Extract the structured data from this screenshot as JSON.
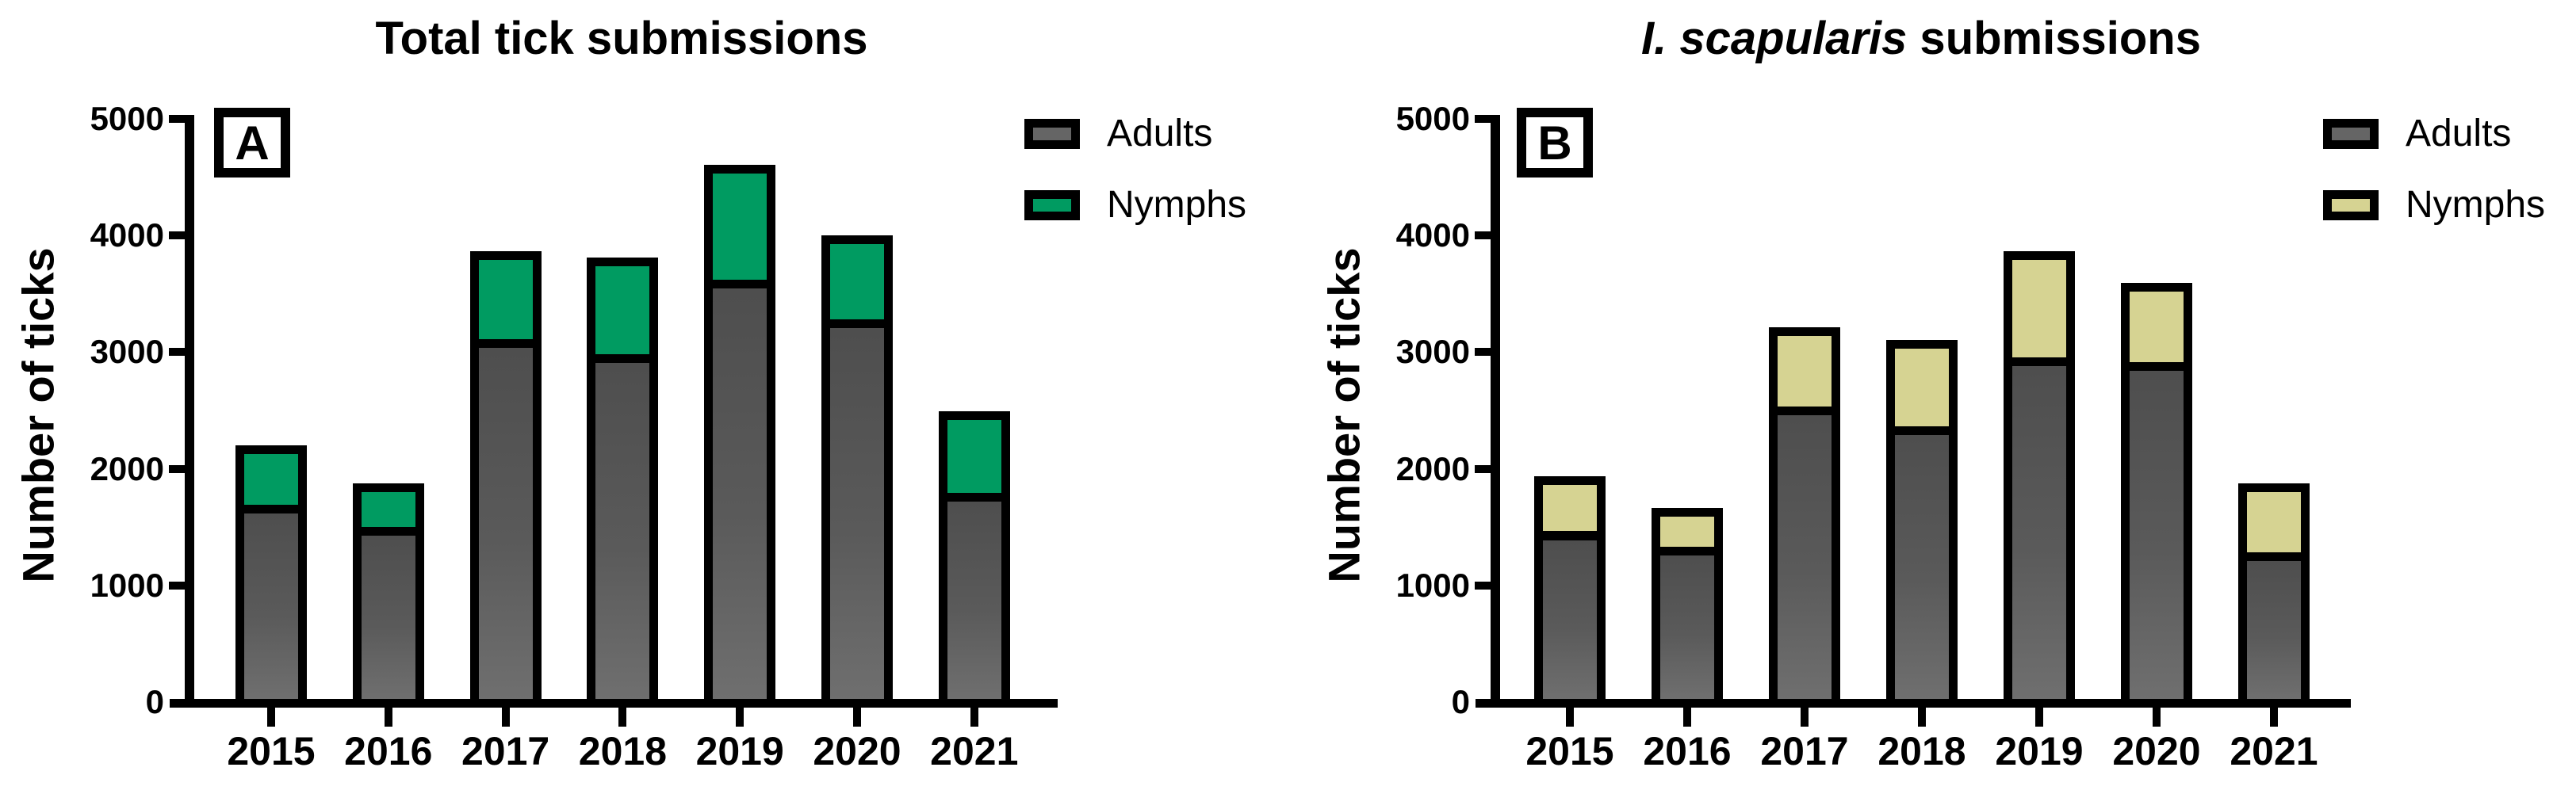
{
  "chart_data": [
    {
      "type": "bar",
      "stacked": true,
      "panel_label": "A",
      "title": "Total tick submissions",
      "title_italic": "",
      "title_rest": "Total tick submissions",
      "xlabel": "",
      "ylabel": "Number of ticks",
      "ylim": [
        0,
        5000
      ],
      "ytick_step": 1000,
      "grid": false,
      "legend_position": "top-right",
      "categories": [
        "2015",
        "2016",
        "2017",
        "2018",
        "2019",
        "2020",
        "2021"
      ],
      "series": [
        {
          "name": "Adults",
          "color": "#5e5e5e",
          "legend_color": "#656565",
          "values": [
            1660,
            1470,
            3080,
            2950,
            3590,
            3250,
            1760
          ]
        },
        {
          "name": "Nymphs",
          "color": "#009B61",
          "legend_color": "#009B61",
          "values": [
            510,
            370,
            750,
            830,
            980,
            720,
            700
          ]
        }
      ],
      "stacked_totals": [
        2170,
        1840,
        3830,
        3780,
        4570,
        3970,
        2460
      ]
    },
    {
      "type": "bar",
      "stacked": true,
      "panel_label": "B",
      "title": "I. scapularis submissions",
      "title_italic": "I. scapularis",
      "title_rest": " submissions",
      "xlabel": "",
      "ylabel": "Number of ticks",
      "ylim": [
        0,
        5000
      ],
      "ytick_step": 1000,
      "grid": false,
      "legend_position": "top-right",
      "categories": [
        "2015",
        "2016",
        "2017",
        "2018",
        "2019",
        "2020",
        "2021"
      ],
      "series": [
        {
          "name": "Adults",
          "color": "#5e5e5e",
          "legend_color": "#656565",
          "values": [
            1430,
            1300,
            2500,
            2330,
            2920,
            2880,
            1250
          ]
        },
        {
          "name": "Nymphs",
          "color": "#D6D392",
          "legend_color": "#D6D392",
          "values": [
            470,
            330,
            680,
            740,
            910,
            680,
            590
          ]
        }
      ],
      "stacked_totals": [
        1900,
        1630,
        3180,
        3070,
        3830,
        3560,
        1840
      ]
    }
  ]
}
